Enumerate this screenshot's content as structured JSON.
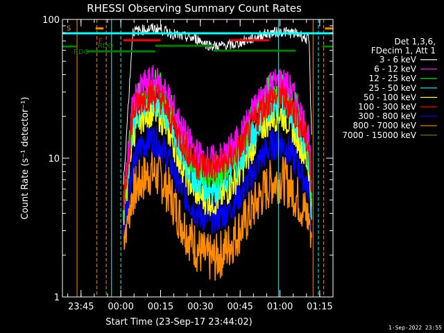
{
  "chart_data": {
    "type": "line",
    "title": "RHESSI Observing Summary Count Rates",
    "xlabel": "Start Time (23-Sep-17 23:44:02)",
    "ylabel": "Count Rate (s⁻¹ detector⁻¹)",
    "yscale": "log",
    "ylim": [
      1,
      100
    ],
    "xlim_minutes_after_start": [
      -6,
      96
    ],
    "x_ticks": [
      {
        "label": "23:45",
        "min": 1
      },
      {
        "label": "00:00",
        "min": 16
      },
      {
        "label": "00:15",
        "min": 31
      },
      {
        "label": "00:30",
        "min": 46
      },
      {
        "label": "00:45",
        "min": 61
      },
      {
        "label": "01:00",
        "min": 76
      },
      {
        "label": "01:15",
        "min": 91
      }
    ],
    "y_ticks": [
      {
        "label": "1",
        "value": 1
      },
      {
        "label": "10",
        "value": 10
      },
      {
        "label": "100",
        "value": 100
      }
    ],
    "legend_header": [
      "Det 1,3,6,",
      "FDecim 1, Att 1"
    ],
    "series": [
      {
        "name": "3 - 6 keV",
        "color": "#ffffff",
        "values": [
          6.5,
          82,
          84,
          86,
          85,
          80,
          76,
          74,
          72,
          66,
          64,
          65,
          66,
          70,
          73,
          78,
          80,
          82,
          80,
          78,
          70,
          12
        ]
      },
      {
        "name": "6 - 12 keV",
        "color": "#ff00ff",
        "values": [
          4.5,
          24,
          32,
          36,
          34,
          26,
          18,
          13,
          10.5,
          9.5,
          9.5,
          10.5,
          12.5,
          16,
          22,
          29,
          34,
          36,
          31,
          22,
          14,
          5
        ]
      },
      {
        "name": "12 - 25 keV",
        "color": "#00ff00",
        "values": [
          4.2,
          22,
          30,
          34,
          32,
          24,
          16,
          11,
          9,
          8,
          8,
          9,
          11,
          14,
          20,
          27,
          32,
          33,
          28,
          20,
          12,
          4.6
        ]
      },
      {
        "name": "25 - 50 keV",
        "color": "#00ffff",
        "values": [
          4.0,
          18,
          24,
          26,
          24,
          18,
          12,
          8.5,
          6.8,
          6.2,
          6.2,
          7,
          8.6,
          11,
          15,
          21,
          25,
          26,
          22,
          16,
          10,
          4.2
        ]
      },
      {
        "name": "50 - 100 keV",
        "color": "#ffff00",
        "values": [
          3.8,
          15,
          20,
          22,
          20,
          15,
          10,
          7,
          5.6,
          5,
          5,
          5.6,
          7,
          9,
          12.5,
          17,
          20,
          21,
          18,
          13,
          8.5,
          4
        ]
      },
      {
        "name": "100 - 300 keV",
        "color": "#ff0000",
        "values": [
          4.5,
          21,
          27,
          29,
          27,
          20,
          14.5,
          11,
          9,
          8.6,
          8.6,
          9.2,
          10.5,
          13,
          17.5,
          23,
          27,
          28,
          24,
          18,
          12,
          4.5
        ]
      },
      {
        "name": "300 - 800 keV",
        "color": "#0000ff",
        "values": [
          3.2,
          9,
          12.5,
          14,
          12.5,
          9.5,
          6.5,
          5,
          4,
          3.7,
          3.7,
          4.1,
          4.9,
          6,
          8,
          10.5,
          12.5,
          13,
          11,
          8.5,
          6,
          3.2
        ]
      },
      {
        "name": "800 - 7000 keV",
        "color": "#ff8c00",
        "values": [
          2.8,
          5.6,
          7,
          8,
          7.2,
          5.6,
          3.8,
          2.8,
          2.2,
          1.9,
          1.9,
          2.2,
          2.7,
          3.4,
          4.4,
          5.6,
          6.8,
          7.2,
          6.2,
          4.8,
          3.6,
          2.8
        ]
      },
      {
        "name": "7000 - 15000 keV",
        "color": "#808000",
        "values": []
      }
    ],
    "x_minutes": [
      17,
      20.5,
      24,
      27.5,
      31,
      34.5,
      38,
      41.5,
      45,
      48.5,
      52,
      55.5,
      59,
      62.5,
      66,
      69.5,
      73,
      76.5,
      80,
      83.5,
      87,
      88
    ]
  },
  "annotations": {
    "saa_label": "S",
    "flare_label": "F",
    "rdo_label_1": "RDO",
    "rdo_label_2": "RDO"
  },
  "timestamp": "1-Sep-2022 23:55",
  "colors": {
    "background": "#000000",
    "axes": "#ffffff",
    "saa": "#ff8c00",
    "night": "#00ffff",
    "flare": "#ff0000",
    "decimation": "#008000"
  }
}
